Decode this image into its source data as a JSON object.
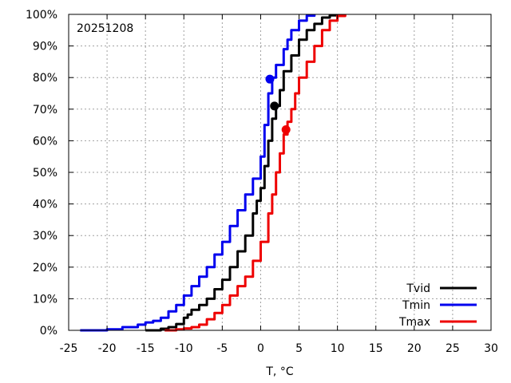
{
  "chart_data": {
    "type": "line",
    "xlabel": "T, °C",
    "ylabel": "",
    "xlim": [
      -25,
      30
    ],
    "ylim": [
      0,
      100
    ],
    "x_ticks": [
      -25,
      -20,
      -15,
      -10,
      -5,
      0,
      5,
      10,
      15,
      20,
      25,
      30
    ],
    "x_tick_labels": [
      "-25",
      "-20",
      "-15",
      "-10",
      "-5",
      "0",
      "5",
      "10",
      "15",
      "20",
      "25",
      "30"
    ],
    "y_ticks": [
      0,
      10,
      20,
      30,
      40,
      50,
      60,
      70,
      80,
      90,
      100
    ],
    "y_tick_labels": [
      "0%",
      "10%",
      "20%",
      "30%",
      "40%",
      "50%",
      "60%",
      "70%",
      "80%",
      "90%",
      "100%"
    ],
    "grid": true,
    "legend_position": "bottom-right",
    "annotation": "20251208",
    "series": [
      {
        "name": "Tvid",
        "color": "#000000",
        "x": [
          -15,
          -13,
          -12,
          -11,
          -10,
          -9.5,
          -9,
          -8,
          -7,
          -6,
          -5,
          -4,
          -3,
          -2,
          -1,
          -0.5,
          0,
          0.5,
          1,
          1.5,
          2,
          2.5,
          3,
          4,
          5,
          6,
          7,
          8,
          9,
          10
        ],
        "values": [
          0,
          0.5,
          1,
          2,
          4,
          5,
          6.5,
          8,
          10,
          13,
          16,
          20,
          25,
          30,
          37,
          41,
          45,
          52,
          60,
          67,
          71,
          76,
          82,
          87,
          92,
          95,
          97,
          99,
          99.7,
          100
        ],
        "marker": {
          "x": 1.8,
          "y": 71
        }
      },
      {
        "name": "Tmin",
        "color": "#0000ee",
        "x": [
          -23.5,
          -20,
          -18,
          -16,
          -15,
          -14,
          -13,
          -12,
          -11,
          -10,
          -9,
          -8,
          -7,
          -6,
          -5,
          -4,
          -3,
          -2,
          -1,
          0,
          0.5,
          1,
          1.5,
          2,
          3,
          3.5,
          4,
          5,
          6,
          7
        ],
        "values": [
          0,
          0.3,
          1,
          1.8,
          2.5,
          3,
          4,
          6,
          8,
          11,
          14,
          17,
          20,
          24,
          28,
          33,
          38,
          43,
          48,
          55,
          65,
          75,
          80,
          84,
          89,
          92,
          95,
          98,
          99.6,
          100
        ],
        "marker": {
          "x": 1.2,
          "y": 79.5
        }
      },
      {
        "name": "Tmax",
        "color": "#ee0000",
        "x": [
          -12.5,
          -11,
          -10,
          -9,
          -8,
          -7,
          -6,
          -5,
          -4,
          -3,
          -2,
          -1,
          0,
          1,
          1.5,
          2,
          2.5,
          3,
          3.5,
          4,
          4.5,
          5,
          6,
          7,
          8,
          9,
          10,
          11
        ],
        "values": [
          0,
          0.3,
          0.6,
          1,
          1.8,
          3.5,
          5.5,
          8,
          11,
          14,
          17,
          22,
          28,
          37,
          43,
          50,
          56,
          62,
          66,
          70,
          75,
          80,
          85,
          90,
          95,
          98,
          99.5,
          100
        ],
        "marker": {
          "x": 3.3,
          "y": 63.5
        }
      }
    ]
  }
}
